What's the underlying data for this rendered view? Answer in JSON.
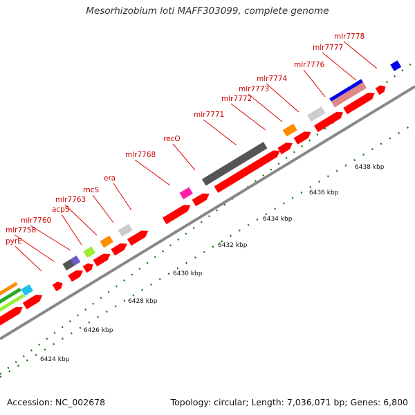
{
  "title": "Mesorhizobium loti MAFF303099, complete genome",
  "accession": "Accession: NC_002678",
  "summary": "Topology: circular; Length: 7,036,071 bp; Genes: 6,800",
  "colors": {
    "cds": "#ff0000",
    "backbone": "#888888",
    "tick": "#117711",
    "label": "#cc0000",
    "leader": "#dd0000"
  },
  "kbp_labels": [
    "6424 kbp",
    "6426 kbp",
    "6428 kbp",
    "6430 kbp",
    "6432 kbp",
    "6434 kbp",
    "6436 kbp",
    "6438 kbp"
  ],
  "gene_labels": [
    "pyrE",
    "mlr7758",
    "mlr7760",
    "acpS",
    "mlr7763",
    "rncS",
    "era",
    "mlr7768",
    "recO",
    "mlr7771",
    "mlr7772",
    "mlr7773",
    "mlr7774",
    "mlr7776",
    "mlr7777",
    "mlr7778"
  ],
  "category_colors": [
    "#1fc0f0",
    "#6a5acd",
    "#ff8c00",
    "#99ee33",
    "#555555",
    "#cccccc",
    "#ff22aa",
    "#22aa22",
    "#0000ee",
    "#dd8888"
  ]
}
